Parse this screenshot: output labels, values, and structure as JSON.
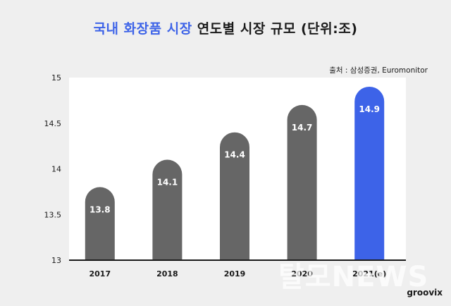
{
  "header": {
    "title_accent": "국내 화장품 시장",
    "title_rest": "연도별 시장 규모 (단위:조)",
    "source": "출처 : 삼성증권, Euromonitor"
  },
  "branding": {
    "watermark": "탈모NEWS",
    "logo": "groovix"
  },
  "colors": {
    "bar": "#666666",
    "bar_highlight": "#3d63e8",
    "background": "#efefef",
    "plot": "#ffffff"
  },
  "chart_data": {
    "type": "bar",
    "title": "국내 화장품 시장 연도별 시장 규모 (단위:조)",
    "categories": [
      "2017",
      "2018",
      "2019",
      "2020",
      "2021(e)"
    ],
    "values": [
      13.8,
      14.1,
      14.4,
      14.7,
      14.9
    ],
    "value_labels": [
      "13.8",
      "14.1",
      "14.4",
      "14.7",
      "14.9"
    ],
    "highlight_index": 4,
    "ylim": [
      13,
      15
    ],
    "yticks": [
      13,
      13.5,
      14,
      14.5,
      15
    ],
    "ytick_labels": [
      "13",
      "13.5",
      "14",
      "14.5",
      "15"
    ],
    "grid": false,
    "legend": "none"
  }
}
